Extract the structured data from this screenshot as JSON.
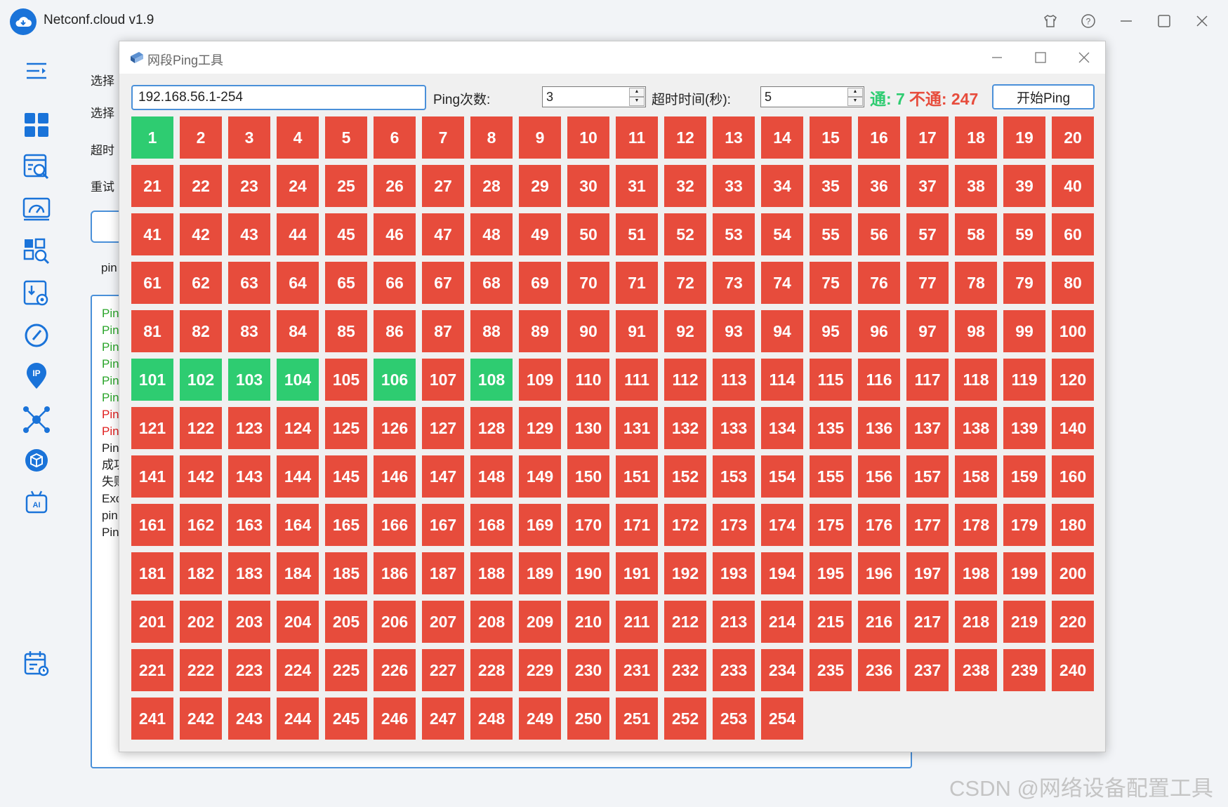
{
  "app": {
    "title": "Netconf.cloud v1.9"
  },
  "background": {
    "labels": [
      "选择",
      "选择",
      "超时",
      "重试",
      "pin"
    ],
    "log_lines": [
      {
        "text": "Pin",
        "color": "#2aa52a"
      },
      {
        "text": "Pin",
        "color": "#2aa52a"
      },
      {
        "text": "Pin",
        "color": "#2aa52a"
      },
      {
        "text": "Pin",
        "color": "#2aa52a"
      },
      {
        "text": "Pin",
        "color": "#2aa52a"
      },
      {
        "text": "Pin",
        "color": "#2aa52a"
      },
      {
        "text": "Pin",
        "color": "#e02020"
      },
      {
        "text": "Pin",
        "color": "#e02020"
      },
      {
        "text": "Pin",
        "color": "#222222"
      },
      {
        "text": "成功",
        "color": "#222222"
      },
      {
        "text": "失败",
        "color": "#222222"
      },
      {
        "text": "Exc",
        "color": "#222222"
      },
      {
        "text": "pin",
        "color": "#222222"
      },
      {
        "text": "Pin",
        "color": "#222222"
      }
    ]
  },
  "dialog": {
    "title": "网段Ping工具",
    "range_value": "192.168.56.1-254",
    "ping_count_label": "Ping次数:",
    "ping_count_value": "3",
    "timeout_label": "超时时间(秒):",
    "timeout_value": "5",
    "stats": {
      "ok_label": "通: 7",
      "fail_label": "不通: 247"
    },
    "start_button": "开始Ping",
    "hosts_total": 254,
    "reachable_hosts": [
      1,
      101,
      102,
      103,
      104,
      106,
      108
    ]
  },
  "watermark": "CSDN @网络设备配置工具",
  "colors": {
    "reachable": "#2ecc71",
    "unreachable": "#e74c3c",
    "accent": "#4a90d9"
  }
}
